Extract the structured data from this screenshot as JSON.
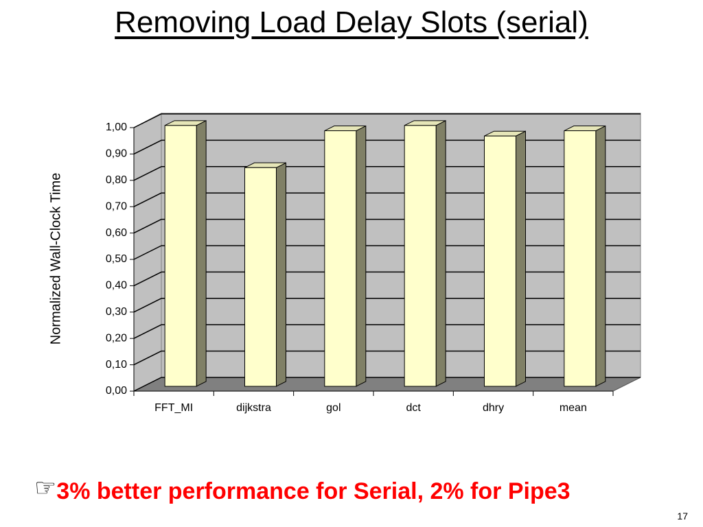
{
  "chart_data": {
    "type": "bar",
    "title": "Removing Load Delay Slots (serial)",
    "y_label": "Normalized Wall-Clock Time",
    "categories": [
      "FFT_MI",
      "dijkstra",
      "gol",
      "dct",
      "dhry",
      "mean"
    ],
    "values": [
      0.99,
      0.83,
      0.97,
      0.99,
      0.95,
      0.97
    ],
    "color": "#ffffcc",
    "ylim": [
      0,
      1
    ],
    "yticks": [
      {
        "value": 0,
        "label": "0,00"
      },
      {
        "value": 0.1,
        "label": "0,10"
      },
      {
        "value": 0.2,
        "label": "0,20"
      },
      {
        "value": 0.3,
        "label": "0,30"
      },
      {
        "value": 0.4,
        "label": "0,40"
      },
      {
        "value": 0.5,
        "label": "0,50"
      },
      {
        "value": 0.6,
        "label": "0,60"
      },
      {
        "value": 0.7,
        "label": "0,70"
      },
      {
        "value": 0.8,
        "label": "0,80"
      },
      {
        "value": 0.9,
        "label": "0,90"
      },
      {
        "value": 1,
        "label": "1,00"
      }
    ],
    "grid": true
  },
  "footer": {
    "bullet": "☞",
    "note": "3% better performance for Serial, 2% for Pipe3",
    "page_number": "17"
  }
}
